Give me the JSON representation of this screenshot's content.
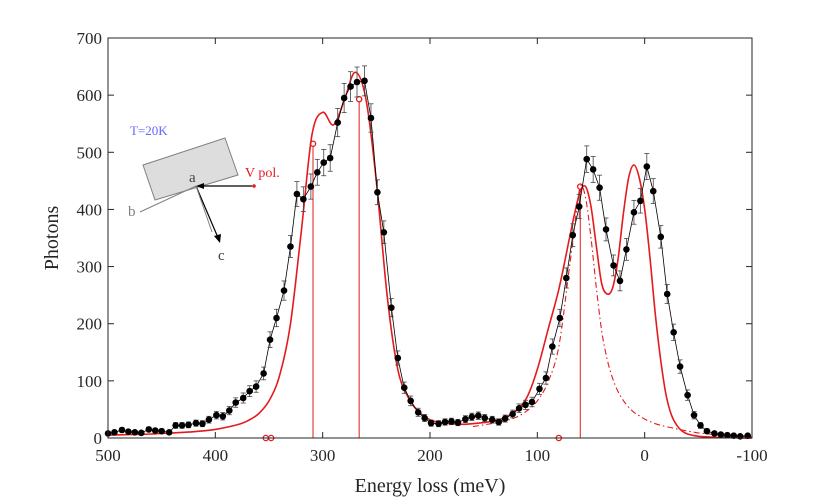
{
  "chart_data": {
    "type": "scatter",
    "xlabel": "Energy loss (meV)",
    "ylabel": "Photons",
    "xlim": [
      500,
      -100
    ],
    "ylim": [
      0,
      700
    ],
    "x_reversed": true,
    "xticks": [
      500,
      400,
      300,
      200,
      100,
      0,
      -100
    ],
    "xtick_labels": [
      "500",
      "400",
      "300",
      "200",
      "100",
      "0",
      "-100"
    ],
    "yticks": [
      0,
      100,
      200,
      300,
      400,
      500,
      600,
      700
    ],
    "ytick_labels": [
      "0",
      "100",
      "200",
      "300",
      "400",
      "500",
      "600",
      "700"
    ],
    "grid": false,
    "annotations": {
      "temperature": "T=20K",
      "polarization": "V pol.",
      "axis_a": "a",
      "axis_b": "b",
      "axis_c": "c"
    },
    "colors": {
      "data": "#000000",
      "fit": "#e41a1c",
      "temperature_text": "#6666ff",
      "sample": "#dddddd"
    },
    "series": [
      {
        "name": "data",
        "style": "markers-with-errorbars-and-line",
        "points": [
          [
            500,
            8
          ],
          [
            494,
            10
          ],
          [
            487,
            14
          ],
          [
            481,
            11
          ],
          [
            475,
            10
          ],
          [
            469,
            9
          ],
          [
            462,
            15
          ],
          [
            456,
            13
          ],
          [
            450,
            12
          ],
          [
            443,
            10
          ],
          [
            437,
            22
          ],
          [
            431,
            22
          ],
          [
            425,
            23
          ],
          [
            418,
            26
          ],
          [
            412,
            25
          ],
          [
            406,
            32
          ],
          [
            399,
            40
          ],
          [
            393,
            38
          ],
          [
            387,
            48
          ],
          [
            381,
            62
          ],
          [
            374,
            70
          ],
          [
            368,
            82
          ],
          [
            362,
            90
          ],
          [
            355,
            113
          ],
          [
            349,
            172
          ],
          [
            343,
            210
          ],
          [
            336,
            258
          ],
          [
            330,
            335
          ],
          [
            324,
            427
          ],
          [
            318,
            418
          ],
          [
            311,
            440
          ],
          [
            305,
            465
          ],
          [
            299,
            482
          ],
          [
            293,
            490
          ],
          [
            286,
            552
          ],
          [
            280,
            595
          ],
          [
            274,
            615
          ],
          [
            268,
            623
          ],
          [
            261,
            625
          ],
          [
            255,
            560
          ],
          [
            249,
            430
          ],
          [
            243,
            360
          ],
          [
            236,
            228
          ],
          [
            230,
            140
          ],
          [
            224,
            88
          ],
          [
            218,
            65
          ],
          [
            211,
            45
          ],
          [
            205,
            35
          ],
          [
            199,
            26
          ],
          [
            192,
            25
          ],
          [
            186,
            28
          ],
          [
            180,
            29
          ],
          [
            174,
            27
          ],
          [
            167,
            33
          ],
          [
            161,
            37
          ],
          [
            155,
            39
          ],
          [
            149,
            35
          ],
          [
            142,
            32
          ],
          [
            136,
            28
          ],
          [
            130,
            34
          ],
          [
            123,
            42
          ],
          [
            117,
            52
          ],
          [
            111,
            58
          ],
          [
            105,
            63
          ],
          [
            98,
            86
          ],
          [
            92,
            105
          ],
          [
            86,
            160
          ],
          [
            79,
            210
          ],
          [
            73,
            280
          ],
          [
            67,
            355
          ],
          [
            61,
            405
          ],
          [
            54,
            488
          ],
          [
            48,
            470
          ],
          [
            42,
            438
          ],
          [
            36,
            365
          ],
          [
            29,
            302
          ],
          [
            23,
            275
          ],
          [
            17,
            330
          ],
          [
            10,
            395
          ],
          [
            4,
            415
          ],
          [
            -2,
            475
          ],
          [
            -8,
            432
          ],
          [
            -15,
            352
          ],
          [
            -21,
            252
          ],
          [
            -27,
            185
          ],
          [
            -33,
            125
          ],
          [
            -40,
            75
          ],
          [
            -46,
            40
          ],
          [
            -52,
            22
          ],
          [
            -58,
            12
          ],
          [
            -65,
            8
          ],
          [
            -71,
            6
          ],
          [
            -77,
            5
          ],
          [
            -83,
            4
          ],
          [
            -89,
            3
          ],
          [
            -96,
            4
          ]
        ]
      },
      {
        "name": "fit-total",
        "style": "solid-line",
        "x": [
          500,
          480,
          460,
          440,
          420,
          400,
          380,
          370,
          360,
          350,
          340,
          330,
          320,
          310,
          300,
          290,
          280,
          270,
          260,
          250,
          240,
          230,
          220,
          210,
          200,
          190,
          180,
          170,
          160,
          150,
          140,
          130,
          120,
          110,
          100,
          90,
          80,
          70,
          65,
          60,
          55,
          50,
          45,
          40,
          35,
          30,
          25,
          20,
          15,
          10,
          5,
          0,
          -5,
          -10,
          -15,
          -20,
          -25,
          -30,
          -35,
          -40,
          -50,
          -60,
          -70,
          -80,
          -90,
          -100
        ],
        "y": [
          5,
          6,
          7,
          9,
          11,
          15,
          23,
          30,
          42,
          65,
          110,
          200,
          360,
          530,
          570,
          548,
          590,
          640,
          596,
          450,
          250,
          120,
          70,
          45,
          32,
          27,
          25,
          24,
          25,
          27,
          30,
          36,
          48,
          70,
          120,
          190,
          260,
          350,
          395,
          432,
          440,
          405,
          335,
          270,
          252,
          262,
          310,
          390,
          455,
          478,
          455,
          400,
          315,
          215,
          135,
          75,
          40,
          22,
          12,
          7,
          3,
          2,
          1,
          1,
          0,
          0
        ]
      },
      {
        "name": "fit-component-60meV",
        "style": "dash-dot-line",
        "x": [
          160,
          150,
          140,
          130,
          120,
          110,
          100,
          90,
          80,
          70,
          65,
          60,
          55,
          50,
          45,
          40,
          35,
          30,
          25,
          20,
          15,
          10,
          5,
          0,
          -10,
          -20,
          -30,
          -40,
          -50,
          -60,
          -70,
          -80,
          -90,
          -100
        ],
        "y": [
          20,
          23,
          26,
          30,
          36,
          47,
          65,
          98,
          160,
          300,
          375,
          440,
          420,
          350,
          262,
          187,
          138,
          105,
          82,
          66,
          54,
          45,
          39,
          33,
          25,
          20,
          16,
          12,
          9,
          7,
          5,
          4,
          3,
          2
        ]
      }
    ],
    "peak_lines": [
      {
        "x": 309,
        "top": 515
      },
      {
        "x": 266,
        "top": 593
      },
      {
        "x": 60,
        "top": 440
      }
    ],
    "open_markers_on_axis": [
      353,
      348,
      80
    ]
  }
}
